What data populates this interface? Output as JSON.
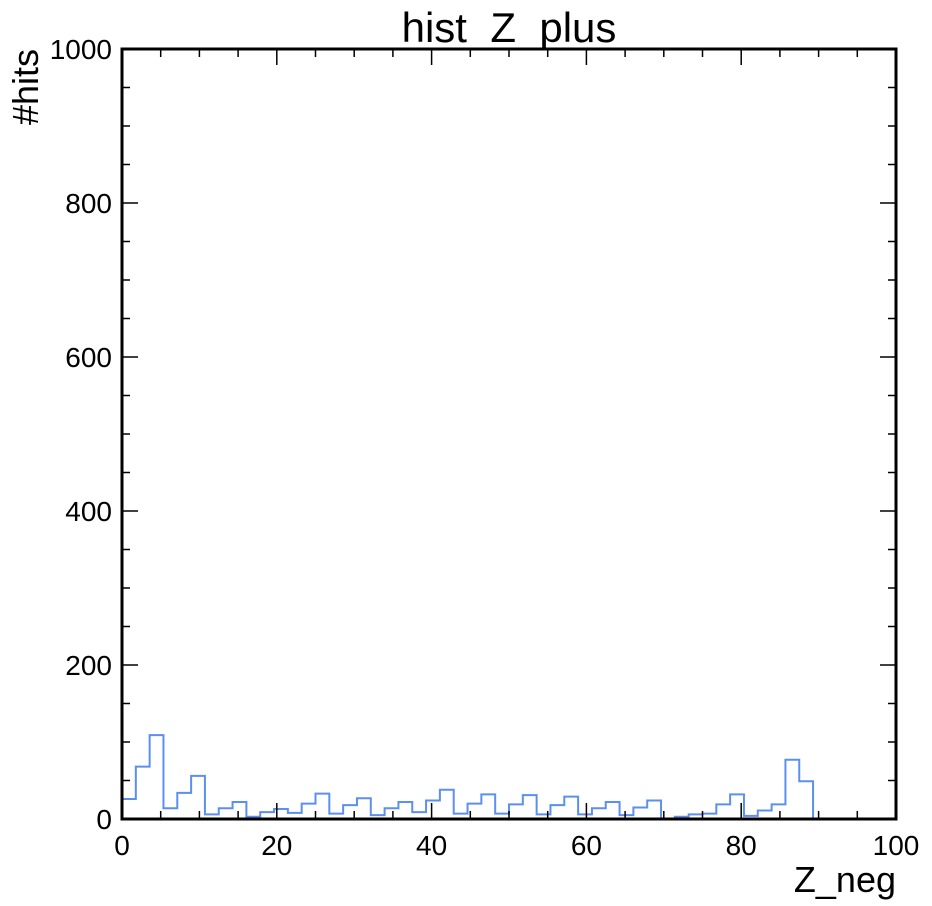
{
  "chart_data": {
    "type": "histogram",
    "title": "hist_Z_plus",
    "xlabel": "Z_neg",
    "ylabel": "#hits",
    "xlim": [
      0,
      100
    ],
    "ylim": [
      0,
      1000
    ],
    "x_major_ticks": [
      0,
      20,
      40,
      60,
      80,
      100
    ],
    "y_major_ticks": [
      0,
      200,
      400,
      600,
      800,
      1000
    ],
    "x_minor_step": 5,
    "y_minor_step": 50,
    "grid": false,
    "line_color": "#5b8ff0",
    "bin_edges": [
      0,
      1.7857,
      3.5714,
      5.3571,
      7.1429,
      8.9286,
      10.7143,
      12.5,
      14.2857,
      16.0714,
      17.8571,
      19.6429,
      21.4286,
      23.2143,
      25,
      26.7857,
      28.5714,
      30.3571,
      32.1429,
      33.9286,
      35.7143,
      37.5,
      39.2857,
      41.0714,
      42.8571,
      44.6429,
      46.4286,
      48.2143,
      50,
      51.7857,
      53.5714,
      55.3571,
      57.1429,
      58.9286,
      60.7143,
      62.5,
      64.2857,
      66.0714,
      67.8571,
      69.6429,
      71.4286,
      73.2143,
      75,
      76.7857,
      78.5714,
      80.3571,
      82.1429,
      83.9286,
      85.7143,
      87.5,
      89.2857,
      91.0714,
      92.8571,
      94.6429,
      96.4286,
      98.2143,
      100
    ],
    "counts": [
      26,
      68,
      109,
      14,
      34,
      56,
      6,
      14,
      22,
      3,
      9,
      13,
      8,
      20,
      33,
      7,
      18,
      27,
      5,
      14,
      22,
      9,
      24,
      38,
      7,
      20,
      32,
      7,
      19,
      31,
      6,
      18,
      29,
      6,
      14,
      22,
      5,
      15,
      24,
      0,
      3,
      6,
      7,
      19,
      32,
      4,
      11,
      19,
      77,
      49,
      0,
      0,
      0,
      0,
      0,
      0
    ]
  }
}
